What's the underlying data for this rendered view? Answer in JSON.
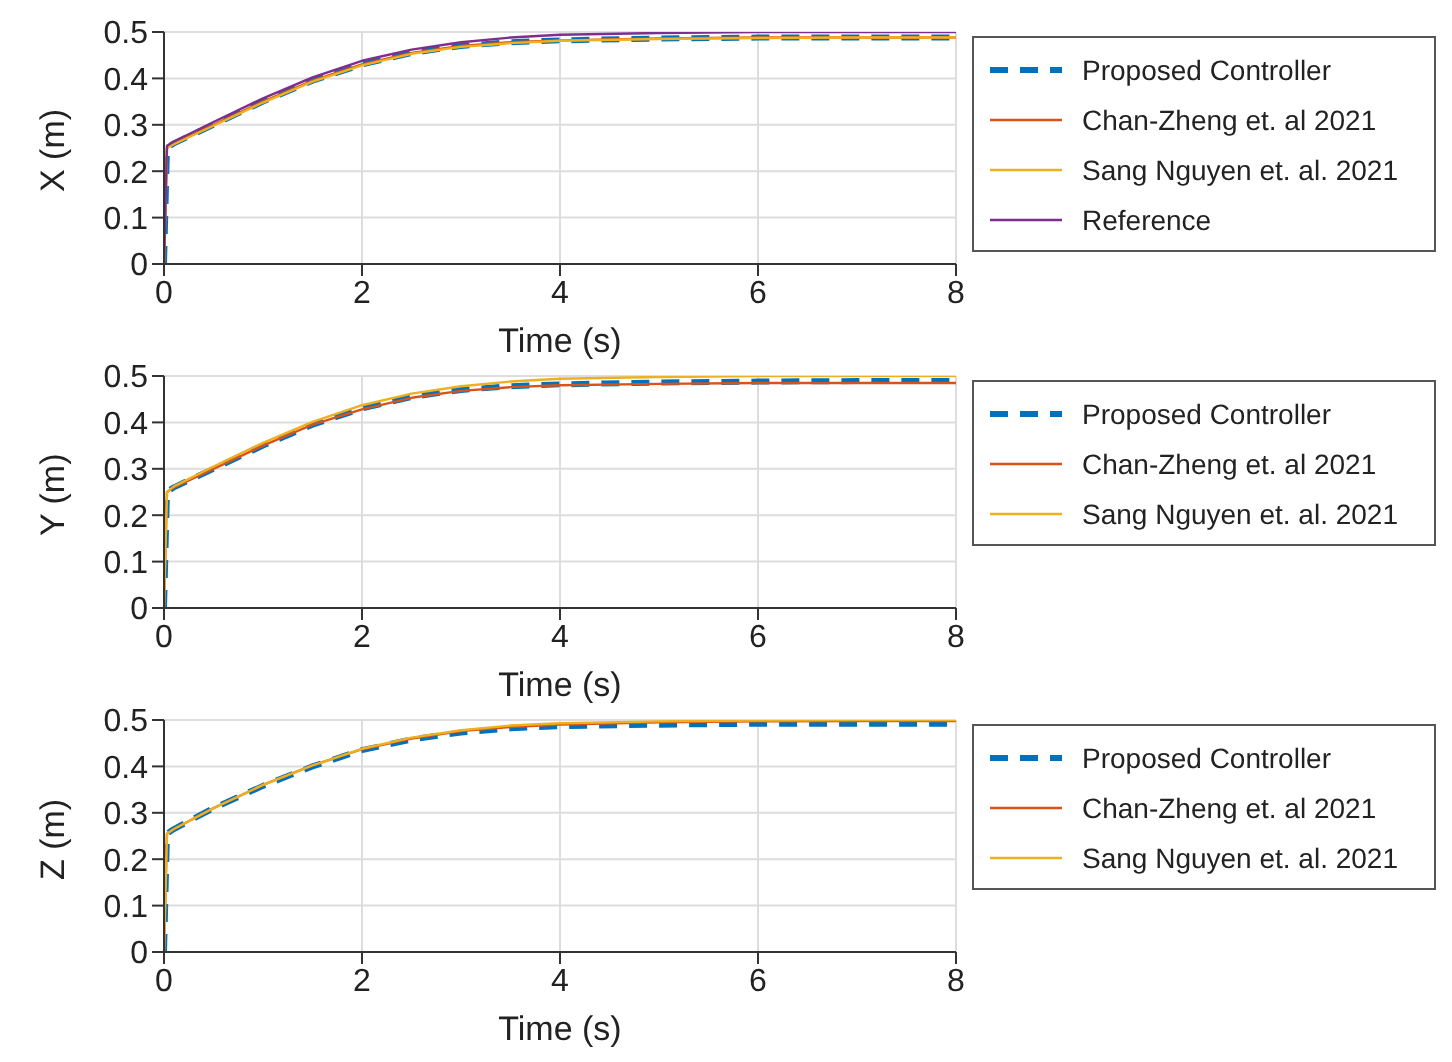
{
  "chart_data": [
    {
      "type": "line",
      "xlabel": "Time (s)",
      "ylabel": "X (m)",
      "x": [
        0,
        0.03,
        0.1,
        0.5,
        1,
        1.5,
        2,
        2.5,
        3,
        3.5,
        4,
        5,
        6,
        7,
        8
      ],
      "xlim": [
        0,
        8
      ],
      "xticks": [
        0,
        2,
        4,
        6,
        8
      ],
      "ylim": [
        0,
        0.5
      ],
      "yticks": [
        0,
        0.1,
        0.2,
        0.3,
        0.4,
        0.5
      ],
      "grid": true,
      "legend": "right",
      "series": [
        {
          "name": "Proposed Controller",
          "color": "#0072bd",
          "line_style": "dashed",
          "values": [
            0,
            0.25,
            0.26,
            0.3,
            0.35,
            0.395,
            0.43,
            0.455,
            0.47,
            0.478,
            0.482,
            0.486,
            0.488,
            0.488,
            0.488
          ]
        },
        {
          "name": "Chan-Zheng et. al 2021",
          "color": "#d95319",
          "line_style": "solid",
          "values": [
            0,
            0.25,
            0.26,
            0.3,
            0.35,
            0.395,
            0.43,
            0.455,
            0.47,
            0.478,
            0.482,
            0.486,
            0.488,
            0.488,
            0.488
          ]
        },
        {
          "name": "Sang Nguyen et. al. 2021",
          "color": "#edb120",
          "line_style": "solid",
          "values": [
            0,
            0.25,
            0.258,
            0.298,
            0.348,
            0.393,
            0.428,
            0.453,
            0.468,
            0.476,
            0.481,
            0.485,
            0.487,
            0.488,
            0.488
          ]
        },
        {
          "name": "Reference",
          "color": "#7e2f8e",
          "line_style": "solid",
          "values": [
            0,
            0.255,
            0.264,
            0.306,
            0.357,
            0.402,
            0.438,
            0.462,
            0.478,
            0.488,
            0.494,
            0.498,
            0.5,
            0.5,
            0.5
          ]
        }
      ]
    },
    {
      "type": "line",
      "xlabel": "Time (s)",
      "ylabel": "Y (m)",
      "x": [
        0,
        0.03,
        0.1,
        0.5,
        1,
        1.5,
        2,
        2.5,
        3,
        3.5,
        4,
        5,
        6,
        7,
        8
      ],
      "xlim": [
        0,
        8
      ],
      "xticks": [
        0,
        2,
        4,
        6,
        8
      ],
      "ylim": [
        0,
        0.5
      ],
      "yticks": [
        0,
        0.1,
        0.2,
        0.3,
        0.4,
        0.5
      ],
      "grid": true,
      "legend": "right",
      "series": [
        {
          "name": "Proposed Controller",
          "color": "#0072bd",
          "line_style": "dashed",
          "values": [
            0,
            0.25,
            0.26,
            0.3,
            0.35,
            0.395,
            0.43,
            0.455,
            0.47,
            0.478,
            0.482,
            0.486,
            0.488,
            0.489,
            0.489
          ]
        },
        {
          "name": "Chan-Zheng et. al 2021",
          "color": "#d95319",
          "line_style": "solid",
          "values": [
            0,
            0.25,
            0.26,
            0.3,
            0.35,
            0.395,
            0.428,
            0.453,
            0.468,
            0.476,
            0.48,
            0.483,
            0.485,
            0.485,
            0.485
          ]
        },
        {
          "name": "Sang Nguyen et. al. 2021",
          "color": "#edb120",
          "line_style": "solid",
          "values": [
            0,
            0.25,
            0.262,
            0.305,
            0.356,
            0.401,
            0.437,
            0.462,
            0.478,
            0.488,
            0.494,
            0.498,
            0.5,
            0.5,
            0.5
          ]
        }
      ]
    },
    {
      "type": "line",
      "xlabel": "Time (s)",
      "ylabel": "Z (m)",
      "x": [
        0,
        0.03,
        0.1,
        0.5,
        1,
        1.5,
        2,
        2.5,
        3,
        3.5,
        4,
        5,
        6,
        7,
        8
      ],
      "xlim": [
        0,
        8
      ],
      "xticks": [
        0,
        2,
        4,
        6,
        8
      ],
      "ylim": [
        0,
        0.5
      ],
      "yticks": [
        0,
        0.1,
        0.2,
        0.3,
        0.4,
        0.5
      ],
      "grid": true,
      "legend": "right",
      "series": [
        {
          "name": "Proposed Controller",
          "color": "#0072bd",
          "line_style": "dashed",
          "values": [
            0,
            0.255,
            0.265,
            0.31,
            0.358,
            0.4,
            0.435,
            0.458,
            0.473,
            0.482,
            0.487,
            0.49,
            0.492,
            0.492,
            0.492
          ]
        },
        {
          "name": "Chan-Zheng et. al 2021",
          "color": "#d95319",
          "line_style": "solid",
          "values": [
            0,
            0.255,
            0.265,
            0.31,
            0.36,
            0.402,
            0.437,
            0.46,
            0.476,
            0.485,
            0.49,
            0.495,
            0.497,
            0.498,
            0.498
          ]
        },
        {
          "name": "Sang Nguyen et. al. 2021",
          "color": "#edb120",
          "line_style": "solid",
          "values": [
            0,
            0.255,
            0.265,
            0.31,
            0.36,
            0.402,
            0.438,
            0.462,
            0.478,
            0.488,
            0.493,
            0.497,
            0.499,
            0.5,
            0.5
          ]
        }
      ]
    }
  ]
}
